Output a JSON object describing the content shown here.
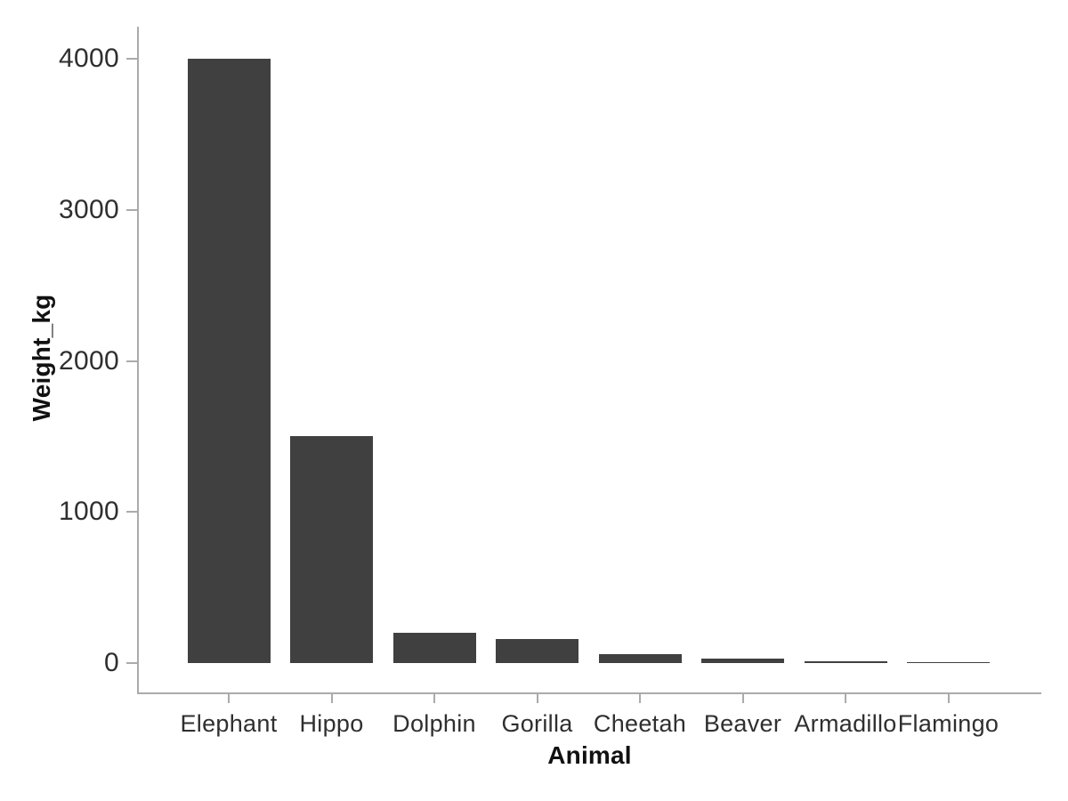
{
  "chart_data": {
    "type": "bar",
    "title": "",
    "xlabel": "Animal",
    "ylabel": "Weight_kg",
    "categories": [
      "Elephant",
      "Hippo",
      "Dolphin",
      "Gorilla",
      "Cheetah",
      "Beaver",
      "Armadillo",
      "Flamingo"
    ],
    "values": [
      4000,
      1500,
      200,
      160,
      60,
      30,
      12,
      4
    ],
    "yticks": [
      0,
      1000,
      2000,
      3000,
      4000
    ],
    "ylim": [
      0,
      4000
    ],
    "grid": false,
    "legend": "none",
    "bar_color": "#404040",
    "axis_color": "#ababab",
    "tick_label_color": "#2f2f2f",
    "axis_title_color": "#111111"
  }
}
